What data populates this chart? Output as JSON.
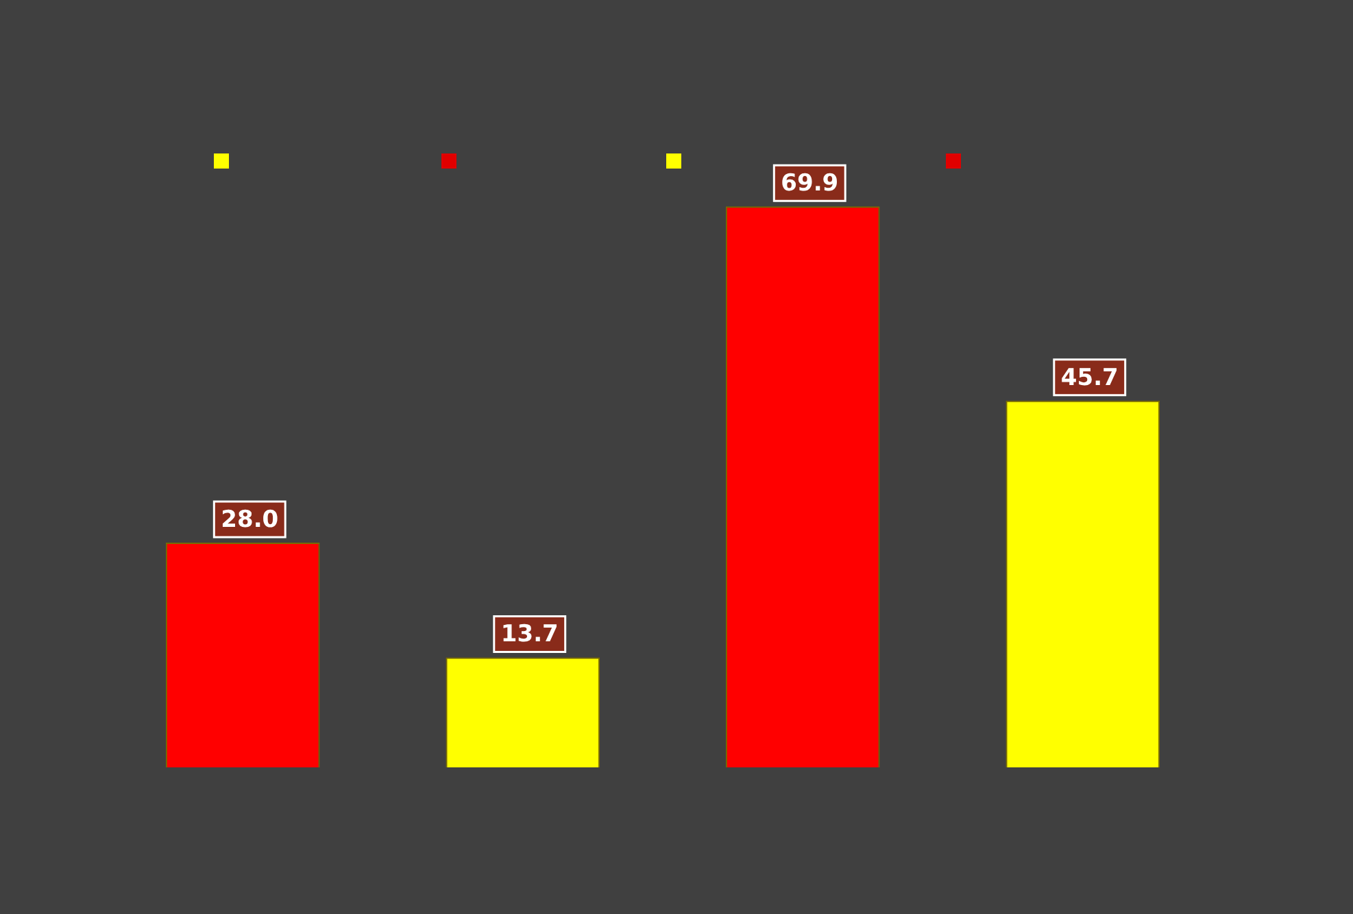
{
  "chart_data": {
    "type": "bar",
    "categories": [
      null,
      null,
      null,
      null
    ],
    "values": [
      28.0,
      13.7,
      69.9,
      45.7
    ],
    "colors": [
      "#ff0000",
      "#ffff00",
      "#ff0000",
      "#ffff00"
    ],
    "value_labels": [
      "28.0",
      "13.7",
      "69.9",
      "45.7"
    ],
    "legend": false,
    "tick_labels": false
  }
}
